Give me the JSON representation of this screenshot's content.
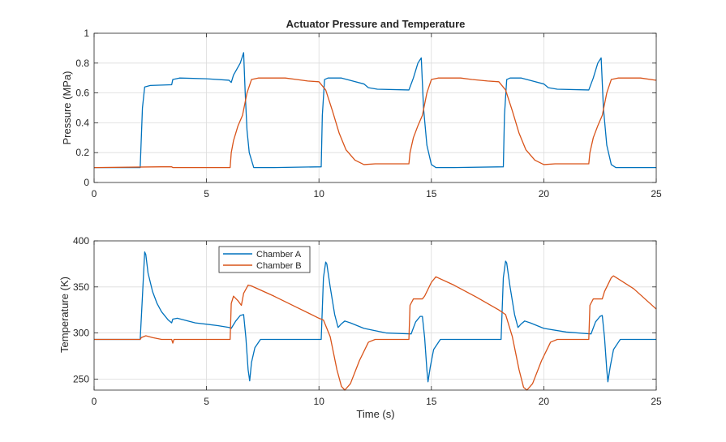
{
  "chart_data": [
    {
      "type": "line",
      "title": "Actuator Pressure and Temperature",
      "xlabel": "",
      "ylabel": "Pressure (MPa)",
      "xlim": [
        0,
        25
      ],
      "ylim": [
        0,
        1
      ],
      "xticks": [
        0,
        5,
        10,
        15,
        20,
        25
      ],
      "yticks": [
        0,
        0.2,
        0.4,
        0.6,
        0.8,
        1
      ],
      "xtick_labels": [
        "0",
        "5",
        "10",
        "15",
        "20",
        "25"
      ],
      "ytick_labels": [
        "0",
        "0.2",
        "0.4",
        "0.6",
        "0.8",
        "1"
      ],
      "grid": true,
      "series": [
        {
          "name": "Chamber A",
          "color": "#0072BD",
          "points": [
            [
              0,
              0.1
            ],
            [
              2.05,
              0.1
            ],
            [
              2.15,
              0.5
            ],
            [
              2.25,
              0.64
            ],
            [
              2.5,
              0.65
            ],
            [
              3.45,
              0.655
            ],
            [
              3.5,
              0.69
            ],
            [
              3.8,
              0.7
            ],
            [
              5,
              0.695
            ],
            [
              6.0,
              0.685
            ],
            [
              6.1,
              0.67
            ],
            [
              6.2,
              0.72
            ],
            [
              6.5,
              0.8
            ],
            [
              6.65,
              0.87
            ],
            [
              6.72,
              0.6
            ],
            [
              6.8,
              0.35
            ],
            [
              6.9,
              0.2
            ],
            [
              7.1,
              0.1
            ],
            [
              8,
              0.1
            ],
            [
              10.1,
              0.105
            ],
            [
              10.15,
              0.45
            ],
            [
              10.25,
              0.69
            ],
            [
              10.4,
              0.7
            ],
            [
              11,
              0.7
            ],
            [
              11.5,
              0.68
            ],
            [
              12,
              0.66
            ],
            [
              12.2,
              0.635
            ],
            [
              12.6,
              0.625
            ],
            [
              14,
              0.62
            ],
            [
              14.2,
              0.7
            ],
            [
              14.4,
              0.8
            ],
            [
              14.55,
              0.835
            ],
            [
              14.65,
              0.5
            ],
            [
              14.8,
              0.25
            ],
            [
              15,
              0.12
            ],
            [
              15.2,
              0.1
            ],
            [
              16,
              0.1
            ],
            [
              18.2,
              0.105
            ],
            [
              18.25,
              0.45
            ],
            [
              18.35,
              0.69
            ],
            [
              18.5,
              0.7
            ],
            [
              19,
              0.7
            ],
            [
              19.5,
              0.68
            ],
            [
              20,
              0.66
            ],
            [
              20.2,
              0.635
            ],
            [
              20.6,
              0.625
            ],
            [
              22,
              0.62
            ],
            [
              22.2,
              0.7
            ],
            [
              22.4,
              0.8
            ],
            [
              22.55,
              0.835
            ],
            [
              22.65,
              0.5
            ],
            [
              22.8,
              0.25
            ],
            [
              23,
              0.12
            ],
            [
              23.2,
              0.1
            ],
            [
              25,
              0.1
            ]
          ]
        },
        {
          "name": "Chamber B",
          "color": "#D95319",
          "points": [
            [
              0,
              0.1
            ],
            [
              3.0,
              0.105
            ],
            [
              3.45,
              0.105
            ],
            [
              3.5,
              0.1
            ],
            [
              5,
              0.1
            ],
            [
              6.05,
              0.1
            ],
            [
              6.1,
              0.2
            ],
            [
              6.2,
              0.28
            ],
            [
              6.4,
              0.38
            ],
            [
              6.6,
              0.45
            ],
            [
              6.8,
              0.6
            ],
            [
              7.0,
              0.69
            ],
            [
              7.3,
              0.7
            ],
            [
              8.5,
              0.7
            ],
            [
              9,
              0.69
            ],
            [
              9.5,
              0.68
            ],
            [
              10,
              0.675
            ],
            [
              10.3,
              0.62
            ],
            [
              10.6,
              0.48
            ],
            [
              10.9,
              0.33
            ],
            [
              11.2,
              0.22
            ],
            [
              11.6,
              0.15
            ],
            [
              12,
              0.12
            ],
            [
              12.5,
              0.125
            ],
            [
              14,
              0.125
            ],
            [
              14.05,
              0.2
            ],
            [
              14.2,
              0.3
            ],
            [
              14.4,
              0.38
            ],
            [
              14.6,
              0.45
            ],
            [
              14.8,
              0.6
            ],
            [
              15,
              0.69
            ],
            [
              15.3,
              0.7
            ],
            [
              16.3,
              0.7
            ],
            [
              16.8,
              0.69
            ],
            [
              17.5,
              0.68
            ],
            [
              18,
              0.675
            ],
            [
              18.3,
              0.62
            ],
            [
              18.6,
              0.48
            ],
            [
              18.9,
              0.33
            ],
            [
              19.2,
              0.22
            ],
            [
              19.6,
              0.15
            ],
            [
              20,
              0.12
            ],
            [
              20.5,
              0.125
            ],
            [
              22,
              0.125
            ],
            [
              22.05,
              0.2
            ],
            [
              22.2,
              0.3
            ],
            [
              22.4,
              0.38
            ],
            [
              22.6,
              0.45
            ],
            [
              22.8,
              0.6
            ],
            [
              23,
              0.69
            ],
            [
              23.3,
              0.7
            ],
            [
              24.3,
              0.7
            ],
            [
              25,
              0.685
            ]
          ]
        }
      ]
    },
    {
      "type": "line",
      "title": "",
      "xlabel": "Time (s)",
      "ylabel": "Temperature (K)",
      "xlim": [
        0,
        25
      ],
      "ylim": [
        238,
        400
      ],
      "xticks": [
        0,
        5,
        10,
        15,
        20,
        25
      ],
      "yticks": [
        250,
        300,
        350,
        400
      ],
      "xtick_labels": [
        "0",
        "5",
        "10",
        "15",
        "20",
        "25"
      ],
      "ytick_labels": [
        "250",
        "300",
        "350",
        "400"
      ],
      "grid": true,
      "legend": {
        "position": "top-center-left",
        "entries": [
          "Chamber A",
          "Chamber B"
        ]
      },
      "series": [
        {
          "name": "Chamber A",
          "color": "#0072BD",
          "points": [
            [
              0,
              293
            ],
            [
              2.05,
              293
            ],
            [
              2.15,
              340
            ],
            [
              2.25,
              388
            ],
            [
              2.3,
              385
            ],
            [
              2.4,
              365
            ],
            [
              2.6,
              345
            ],
            [
              2.8,
              332
            ],
            [
              3.0,
              323
            ],
            [
              3.3,
              314
            ],
            [
              3.45,
              311
            ],
            [
              3.5,
              315
            ],
            [
              3.7,
              316
            ],
            [
              4.5,
              311
            ],
            [
              5.5,
              308
            ],
            [
              6.0,
              306
            ],
            [
              6.1,
              305
            ],
            [
              6.3,
              313
            ],
            [
              6.5,
              319
            ],
            [
              6.65,
              320
            ],
            [
              6.75,
              295
            ],
            [
              6.85,
              260
            ],
            [
              6.92,
              248
            ],
            [
              7.0,
              268
            ],
            [
              7.15,
              284
            ],
            [
              7.4,
              293
            ],
            [
              8,
              293
            ],
            [
              10.0,
              293
            ],
            [
              10.1,
              293
            ],
            [
              10.2,
              360
            ],
            [
              10.3,
              377
            ],
            [
              10.35,
              375
            ],
            [
              10.5,
              350
            ],
            [
              10.7,
              320
            ],
            [
              10.85,
              306
            ],
            [
              11.0,
              310
            ],
            [
              11.15,
              313
            ],
            [
              11.4,
              311
            ],
            [
              12,
              305
            ],
            [
              13,
              300
            ],
            [
              14.1,
              299
            ],
            [
              14.3,
              312
            ],
            [
              14.5,
              318
            ],
            [
              14.6,
              318
            ],
            [
              14.7,
              295
            ],
            [
              14.8,
              260
            ],
            [
              14.85,
              247
            ],
            [
              14.95,
              263
            ],
            [
              15.1,
              282
            ],
            [
              15.4,
              293
            ],
            [
              16,
              293
            ],
            [
              18.1,
              293
            ],
            [
              18.2,
              360
            ],
            [
              18.3,
              378
            ],
            [
              18.35,
              376
            ],
            [
              18.5,
              350
            ],
            [
              18.7,
              320
            ],
            [
              18.85,
              306
            ],
            [
              19.0,
              310
            ],
            [
              19.15,
              313
            ],
            [
              19.4,
              311
            ],
            [
              20,
              305
            ],
            [
              21,
              301
            ],
            [
              22.1,
              299
            ],
            [
              22.3,
              312
            ],
            [
              22.5,
              318
            ],
            [
              22.6,
              319
            ],
            [
              22.7,
              295
            ],
            [
              22.8,
              260
            ],
            [
              22.85,
              247
            ],
            [
              22.95,
              263
            ],
            [
              23.1,
              282
            ],
            [
              23.4,
              293
            ],
            [
              25,
              293
            ]
          ]
        },
        {
          "name": "Chamber B",
          "color": "#D95319",
          "points": [
            [
              0,
              293
            ],
            [
              2.05,
              293
            ],
            [
              2.1,
              295
            ],
            [
              2.3,
              297
            ],
            [
              2.6,
              295
            ],
            [
              3.0,
              293
            ],
            [
              3.45,
              293
            ],
            [
              3.5,
              289
            ],
            [
              3.55,
              293
            ],
            [
              5,
              293
            ],
            [
              6.05,
              293
            ],
            [
              6.1,
              332
            ],
            [
              6.2,
              340
            ],
            [
              6.4,
              335
            ],
            [
              6.55,
              330
            ],
            [
              6.65,
              343
            ],
            [
              6.85,
              352
            ],
            [
              7.0,
              351
            ],
            [
              8,
              340
            ],
            [
              9,
              328
            ],
            [
              10.0,
              316
            ],
            [
              10.2,
              314
            ],
            [
              10.5,
              296
            ],
            [
              10.8,
              260
            ],
            [
              11.0,
              242
            ],
            [
              11.15,
              238
            ],
            [
              11.4,
              245
            ],
            [
              11.8,
              270
            ],
            [
              12.2,
              290
            ],
            [
              12.5,
              293
            ],
            [
              14,
              293
            ],
            [
              14.05,
              330
            ],
            [
              14.2,
              337
            ],
            [
              14.6,
              337
            ],
            [
              14.7,
              340
            ],
            [
              15,
              355
            ],
            [
              15.2,
              361
            ],
            [
              16,
              352
            ],
            [
              17,
              339
            ],
            [
              18,
              325
            ],
            [
              18.3,
              320
            ],
            [
              18.6,
              296
            ],
            [
              18.9,
              260
            ],
            [
              19.1,
              241
            ],
            [
              19.25,
              238
            ],
            [
              19.5,
              245
            ],
            [
              19.9,
              270
            ],
            [
              20.3,
              290
            ],
            [
              20.6,
              293
            ],
            [
              22,
              293
            ],
            [
              22.05,
              330
            ],
            [
              22.2,
              337
            ],
            [
              22.6,
              337
            ],
            [
              22.7,
              345
            ],
            [
              23,
              360
            ],
            [
              23.1,
              362
            ],
            [
              24,
              348
            ],
            [
              25,
              326
            ]
          ]
        }
      ]
    }
  ]
}
